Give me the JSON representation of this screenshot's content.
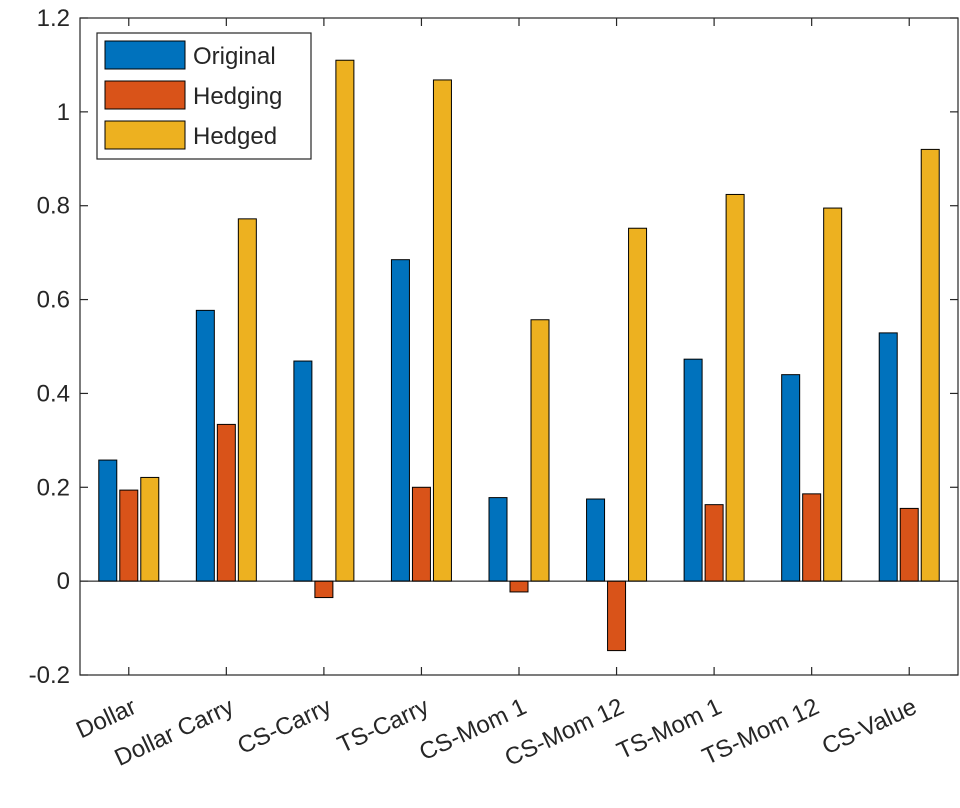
{
  "chart_data": {
    "type": "bar",
    "categories": [
      "Dollar",
      "Dollar Carry",
      "CS-Carry",
      "TS-Carry",
      "CS-Mom 1",
      "CS-Mom 12",
      "TS-Mom 1",
      "TS-Mom 12",
      "CS-Value"
    ],
    "series": [
      {
        "name": "Original",
        "color": "#0072BD",
        "values": [
          0.258,
          0.577,
          0.469,
          0.685,
          0.178,
          0.175,
          0.473,
          0.44,
          0.529
        ]
      },
      {
        "name": "Hedging",
        "color": "#D95319",
        "values": [
          0.194,
          0.334,
          -0.035,
          0.2,
          -0.023,
          -0.148,
          0.163,
          0.186,
          0.155
        ]
      },
      {
        "name": "Hedged",
        "color": "#EDB120",
        "values": [
          0.221,
          0.772,
          1.11,
          1.068,
          0.557,
          0.752,
          0.824,
          0.795,
          0.92
        ]
      }
    ],
    "ylim": [
      -0.2,
      1.2
    ],
    "yticks": [
      "-0.2",
      "0",
      "0.2",
      "0.4",
      "0.6",
      "0.8",
      "1",
      "1.2"
    ],
    "legend_position": "top-left",
    "grid": false,
    "xlabel": "",
    "ylabel": "",
    "title": ""
  }
}
